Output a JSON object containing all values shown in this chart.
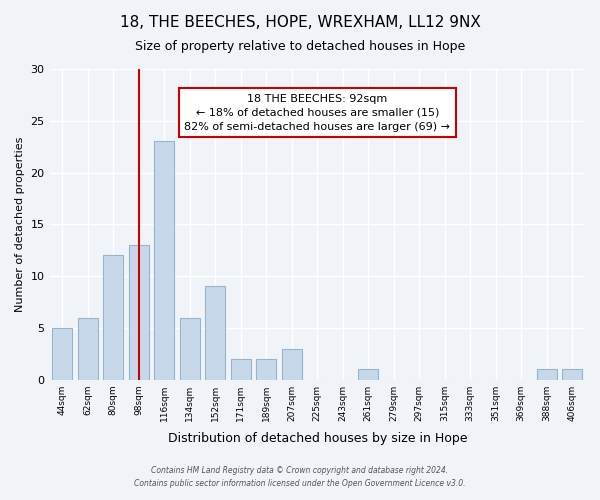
{
  "title": "18, THE BEECHES, HOPE, WREXHAM, LL12 9NX",
  "subtitle": "Size of property relative to detached houses in Hope",
  "xlabel": "Distribution of detached houses by size in Hope",
  "ylabel": "Number of detached properties",
  "bin_labels": [
    "44sqm",
    "62sqm",
    "80sqm",
    "98sqm",
    "116sqm",
    "134sqm",
    "152sqm",
    "171sqm",
    "189sqm",
    "207sqm",
    "225sqm",
    "243sqm",
    "261sqm",
    "279sqm",
    "297sqm",
    "315sqm",
    "333sqm",
    "351sqm",
    "369sqm",
    "388sqm",
    "406sqm"
  ],
  "bar_heights": [
    5,
    6,
    12,
    13,
    23,
    6,
    9,
    2,
    2,
    3,
    0,
    0,
    1,
    0,
    0,
    0,
    0,
    0,
    0,
    1,
    1
  ],
  "bar_color": "#c8d8eb",
  "bar_edge_color": "#96b4cc",
  "property_bin_index": 3,
  "annotation_line1": "18 THE BEECHES: 92sqm",
  "annotation_line2": "← 18% of detached houses are smaller (15)",
  "annotation_line3": "82% of semi-detached houses are larger (69) →",
  "annotation_box_color": "white",
  "annotation_box_edge_color": "#cc0000",
  "vline_color": "#cc0000",
  "ylim": [
    0,
    30
  ],
  "yticks": [
    0,
    5,
    10,
    15,
    20,
    25,
    30
  ],
  "footer_line1": "Contains HM Land Registry data © Crown copyright and database right 2024.",
  "footer_line2": "Contains public sector information licensed under the Open Government Licence v3.0.",
  "background_color": "#f0f4f8",
  "grid_color": "#ffffff",
  "title_fontsize": 11,
  "subtitle_fontsize": 9,
  "ylabel_fontsize": 8,
  "xlabel_fontsize": 9
}
